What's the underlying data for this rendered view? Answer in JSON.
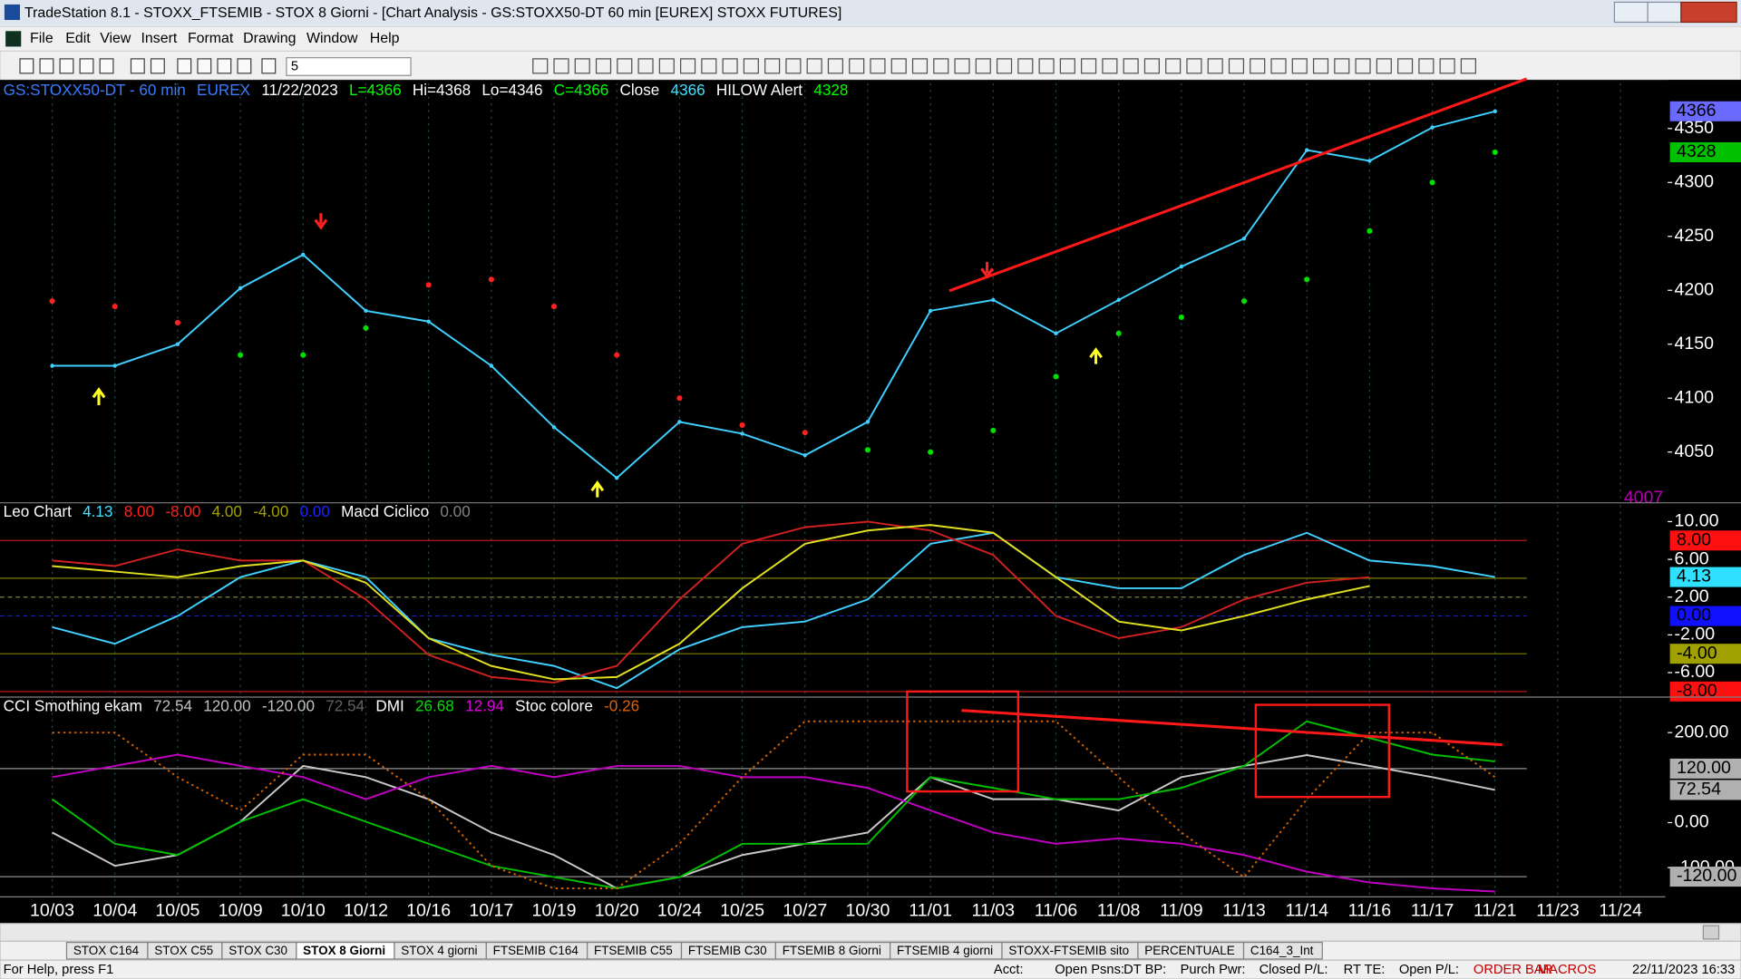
{
  "window": {
    "title": "TradeStation 8.1 - STOXX_FTSEMIB - STOX  8 Giorni - [Chart Analysis - GS:STOXX50-DT  60 min  [EUREX] STOXX FUTURES]"
  },
  "menu": [
    "File",
    "Edit",
    "View",
    "Insert",
    "Format",
    "Drawing",
    "Window",
    "Help"
  ],
  "toolbar": {
    "combo": "5"
  },
  "chart_data": [
    {
      "type": "line",
      "header": [
        {
          "text": "GS:STOXX50-DT - 60 min",
          "color": "#3a7bff"
        },
        {
          "text": "EUREX",
          "color": "#3a7bff"
        },
        {
          "text": "11/22/2023",
          "color": "#ffffff"
        },
        {
          "text": "L=4366",
          "color": "#00ff00"
        },
        {
          "text": "Hi=4368",
          "color": "#ffffff"
        },
        {
          "text": "Lo=4346",
          "color": "#ffffff"
        },
        {
          "text": "C=4366",
          "color": "#00ff00"
        },
        {
          "text": "Close",
          "color": "#ffffff"
        },
        {
          "text": "4366",
          "color": "#40e0ff"
        },
        {
          "text": "HILOW Alert",
          "color": "#ffffff"
        },
        {
          "text": "4328",
          "color": "#00ff00"
        }
      ],
      "categories": [
        "10/03",
        "10/04",
        "10/05",
        "10/09",
        "10/10",
        "10/12",
        "10/16",
        "10/17",
        "10/19",
        "10/20",
        "10/24",
        "10/25",
        "10/27",
        "10/30",
        "11/01",
        "11/03",
        "11/06",
        "11/08",
        "11/09",
        "11/13",
        "11/14",
        "11/16",
        "11/17",
        "11/21",
        "11/23",
        "11/24"
      ],
      "series": [
        {
          "name": "Close",
          "color": "#40d0ff",
          "style": "line",
          "values": [
            4130,
            4130,
            4150,
            4202,
            4233,
            4181,
            4171,
            4130,
            4073,
            4026,
            4078,
            4067,
            4047,
            4078,
            4181,
            4191,
            4160,
            4191,
            4222,
            4248,
            4330,
            4320,
            4351,
            4366,
            null,
            null
          ]
        },
        {
          "name": "HILOW Alert",
          "color": "#00e000",
          "style": "dots",
          "colors": [
            "#ff2020",
            "#ff2020",
            "#ff2020",
            "#00e000",
            "#00e000",
            "#00e000",
            "#ff2020",
            "#ff2020",
            "#ff2020",
            "#ff2020",
            "#ff2020",
            "#ff2020",
            "#ff2020",
            "#00e000",
            "#00e000",
            "#00e000",
            "#00e000",
            "#00e000",
            "#00e000",
            "#00e000",
            "#00e000",
            "#00e000",
            "#00e000",
            "#00e000",
            "#00e000",
            "#00e000"
          ],
          "values": [
            4190,
            4185,
            4170,
            4140,
            4140,
            4165,
            4205,
            4210,
            4185,
            4140,
            4100,
            4075,
            4068,
            4052,
            4050,
            4070,
            4120,
            4160,
            4175,
            4190,
            4210,
            4255,
            4300,
            4328,
            null,
            null
          ]
        }
      ],
      "ylim": [
        4006,
        4392
      ],
      "yticks": [
        4050,
        4100,
        4150,
        4200,
        4250,
        4300,
        4350
      ],
      "value_markers": [
        {
          "value": 4366,
          "label": "4366",
          "color": "#6a6aff",
          "box": true
        },
        {
          "value": 4328,
          "label": "4328",
          "color": "#00c000",
          "box": true
        },
        {
          "value": 4007,
          "label": "4007",
          "color": "#b000b0",
          "box": false
        }
      ]
    },
    {
      "type": "line",
      "header": [
        {
          "text": "Leo Chart",
          "color": "#ffffff"
        },
        {
          "text": "4.13",
          "color": "#40e0ff"
        },
        {
          "text": "8.00",
          "color": "#ff2020"
        },
        {
          "text": "-8.00",
          "color": "#ff2020"
        },
        {
          "text": "4.00",
          "color": "#a0a000"
        },
        {
          "text": "-4.00",
          "color": "#a0a000"
        },
        {
          "text": "0.00",
          "color": "#2020ff"
        },
        {
          "text": "Macd Ciclico",
          "color": "#ffffff"
        },
        {
          "text": "0.00",
          "color": "#808080"
        }
      ],
      "series": [
        {
          "name": "Leo Chart",
          "color": "#40d0ff",
          "style": "line",
          "values": [
            -1.18,
            -2.94,
            0,
            4.12,
            5.88,
            4.12,
            -2.35,
            -4.12,
            -5.29,
            -7.65,
            -3.53,
            -1.18,
            -0.59,
            1.76,
            7.65,
            8.82,
            4.12,
            2.94,
            2.94,
            6.47,
            8.82,
            5.88,
            5.29,
            4.13,
            null,
            null
          ]
        },
        {
          "name": "Macd Ciclico",
          "color": "#d02020",
          "style": "line",
          "values": [
            5.88,
            5.29,
            7.06,
            5.88,
            5.88,
            1.76,
            -4.12,
            -6.47,
            -7.06,
            -5.29,
            1.76,
            7.65,
            9.41,
            10,
            9.06,
            6.47,
            0,
            -2.35,
            -1.18,
            1.76,
            3.53,
            4.12,
            null,
            null,
            null,
            null
          ]
        },
        {
          "color": "#e0e020",
          "style": "line",
          "values": [
            5.29,
            4.71,
            4.12,
            5.29,
            5.88,
            3.53,
            -2.35,
            -5.29,
            -6.71,
            -6.47,
            -2.94,
            2.94,
            7.65,
            9.06,
            9.65,
            8.82,
            4.12,
            -0.59,
            -1.53,
            0,
            1.76,
            3.18,
            null,
            null,
            null,
            null
          ]
        }
      ],
      "ylim": [
        -8.59,
        11.76
      ],
      "yticks": [
        {
          "value": 10,
          "label": "10.00"
        },
        {
          "value": 6,
          "label": "6.00"
        },
        {
          "value": 2,
          "label": "2.00"
        },
        {
          "value": -2,
          "label": "-2.00"
        },
        {
          "value": -6,
          "label": "-6.00"
        }
      ],
      "reference_lines": [
        {
          "value": 8,
          "color": "#c01818"
        },
        {
          "value": -8,
          "color": "#c01818"
        },
        {
          "value": 4,
          "color": "#808000"
        },
        {
          "value": -4,
          "color": "#808000"
        },
        {
          "value": 0,
          "color": "#2020c0",
          "dashed": true
        },
        {
          "value": 2,
          "color": "#808040",
          "dashed": true
        }
      ],
      "value_markers": [
        {
          "value": 8,
          "label": "8.00",
          "color": "#ff1010",
          "box": true
        },
        {
          "value": 4.13,
          "label": "4.13",
          "color": "#30e0ff",
          "box": true
        },
        {
          "value": 0,
          "label": "0.00",
          "color": "#1010ff",
          "box": true
        },
        {
          "value": -4,
          "label": "-4.00",
          "color": "#a0a000",
          "box": true
        },
        {
          "value": -8,
          "label": "-8.00",
          "color": "#ff1010",
          "box": true
        }
      ]
    },
    {
      "type": "line",
      "header": [
        {
          "text": "CCI Smothing ekam",
          "color": "#ffffff"
        },
        {
          "text": "72.54",
          "color": "#c0c0c0"
        },
        {
          "text": "120.00",
          "color": "#c0c0c0"
        },
        {
          "text": "-120.00",
          "color": "#c0c0c0"
        },
        {
          "text": "72.54",
          "color": "#606060"
        },
        {
          "text": "DMI",
          "color": "#ffffff"
        },
        {
          "text": "26.68",
          "color": "#00e000"
        },
        {
          "text": "12.94",
          "color": "#e000e0"
        },
        {
          "text": "Stoc colore",
          "color": "#ffffff"
        },
        {
          "text": "-0.26",
          "color": "#e06000"
        }
      ],
      "series": [
        {
          "name": "CCI Smothing ekam",
          "color": "#c8c8c8",
          "style": "line",
          "values": [
            -22,
            -96,
            -72,
            2,
            126,
            101,
            52,
            -22,
            -72,
            -146,
            -121,
            -72,
            -47,
            -22,
            101,
            52,
            52,
            27,
            101,
            126,
            150,
            126,
            101,
            72.54,
            null,
            null
          ]
        },
        {
          "color": "#c000c0",
          "style": "line",
          "values": [
            101,
            126,
            151,
            126,
            101,
            52,
            101,
            126,
            101,
            126,
            126,
            101,
            101,
            77,
            27,
            -22,
            -47,
            -35,
            -47,
            -72,
            -109,
            -133,
            -146,
            -153,
            null,
            null
          ]
        },
        {
          "color": "#00c000",
          "style": "line",
          "values": [
            52,
            -47,
            -72,
            2,
            52,
            2,
            -47,
            -96,
            -121,
            -146,
            -121,
            -47,
            -47,
            -47,
            101,
            77,
            52,
            52,
            77,
            126,
            225,
            188,
            151,
            136,
            null,
            null
          ]
        },
        {
          "name": "Stoc colore",
          "color": "#d06000",
          "style": "dashed",
          "values": [
            200,
            200,
            101,
            27,
            151,
            151,
            52,
            -96,
            -146,
            -146,
            -47,
            101,
            225,
            225,
            225,
            225,
            225,
            101,
            -22,
            -121,
            52,
            200,
            200,
            101,
            null,
            null
          ]
        }
      ],
      "ylim": [
        -160,
        274
      ],
      "yticks": [
        {
          "value": 200,
          "label": "200.00"
        },
        {
          "value": 0,
          "label": "0.00"
        },
        {
          "value": -100,
          "label": "-100.00"
        }
      ],
      "reference_lines": [
        {
          "value": 120,
          "color": "#909090"
        },
        {
          "value": -120,
          "color": "#909090"
        }
      ],
      "value_markers": [
        {
          "value": 120,
          "label": "120.00",
          "color": "#b0b0b0",
          "box": true
        },
        {
          "value": 72.54,
          "label": "72.54",
          "color": "#b0b0b0",
          "box": true
        },
        {
          "value": -120,
          "label": "-120.00",
          "color": "#b0b0b0",
          "box": true
        }
      ]
    }
  ],
  "tabs": [
    "STOX C164",
    "STOX C55",
    "STOX  C30",
    "STOX  8 Giorni",
    "STOX 4 giorni",
    "FTSEMIB C164",
    "FTSEMIB C55",
    "FTSEMIB C30",
    "FTSEMIB  8 Giorni",
    "FTSEMIB  4 giorni",
    "STOXX-FTSEMIB sito",
    "PERCENTUALE",
    "C164_3_Int"
  ],
  "status": [
    "For Help, press F1",
    "Acct:",
    "Open Psns:",
    "DT BP:",
    "Purch Pwr:",
    "Closed P/L:",
    "RT TE:",
    "Open P/L:",
    "ORDER BAR",
    "MACROS",
    "22/11/2023 16:33"
  ]
}
